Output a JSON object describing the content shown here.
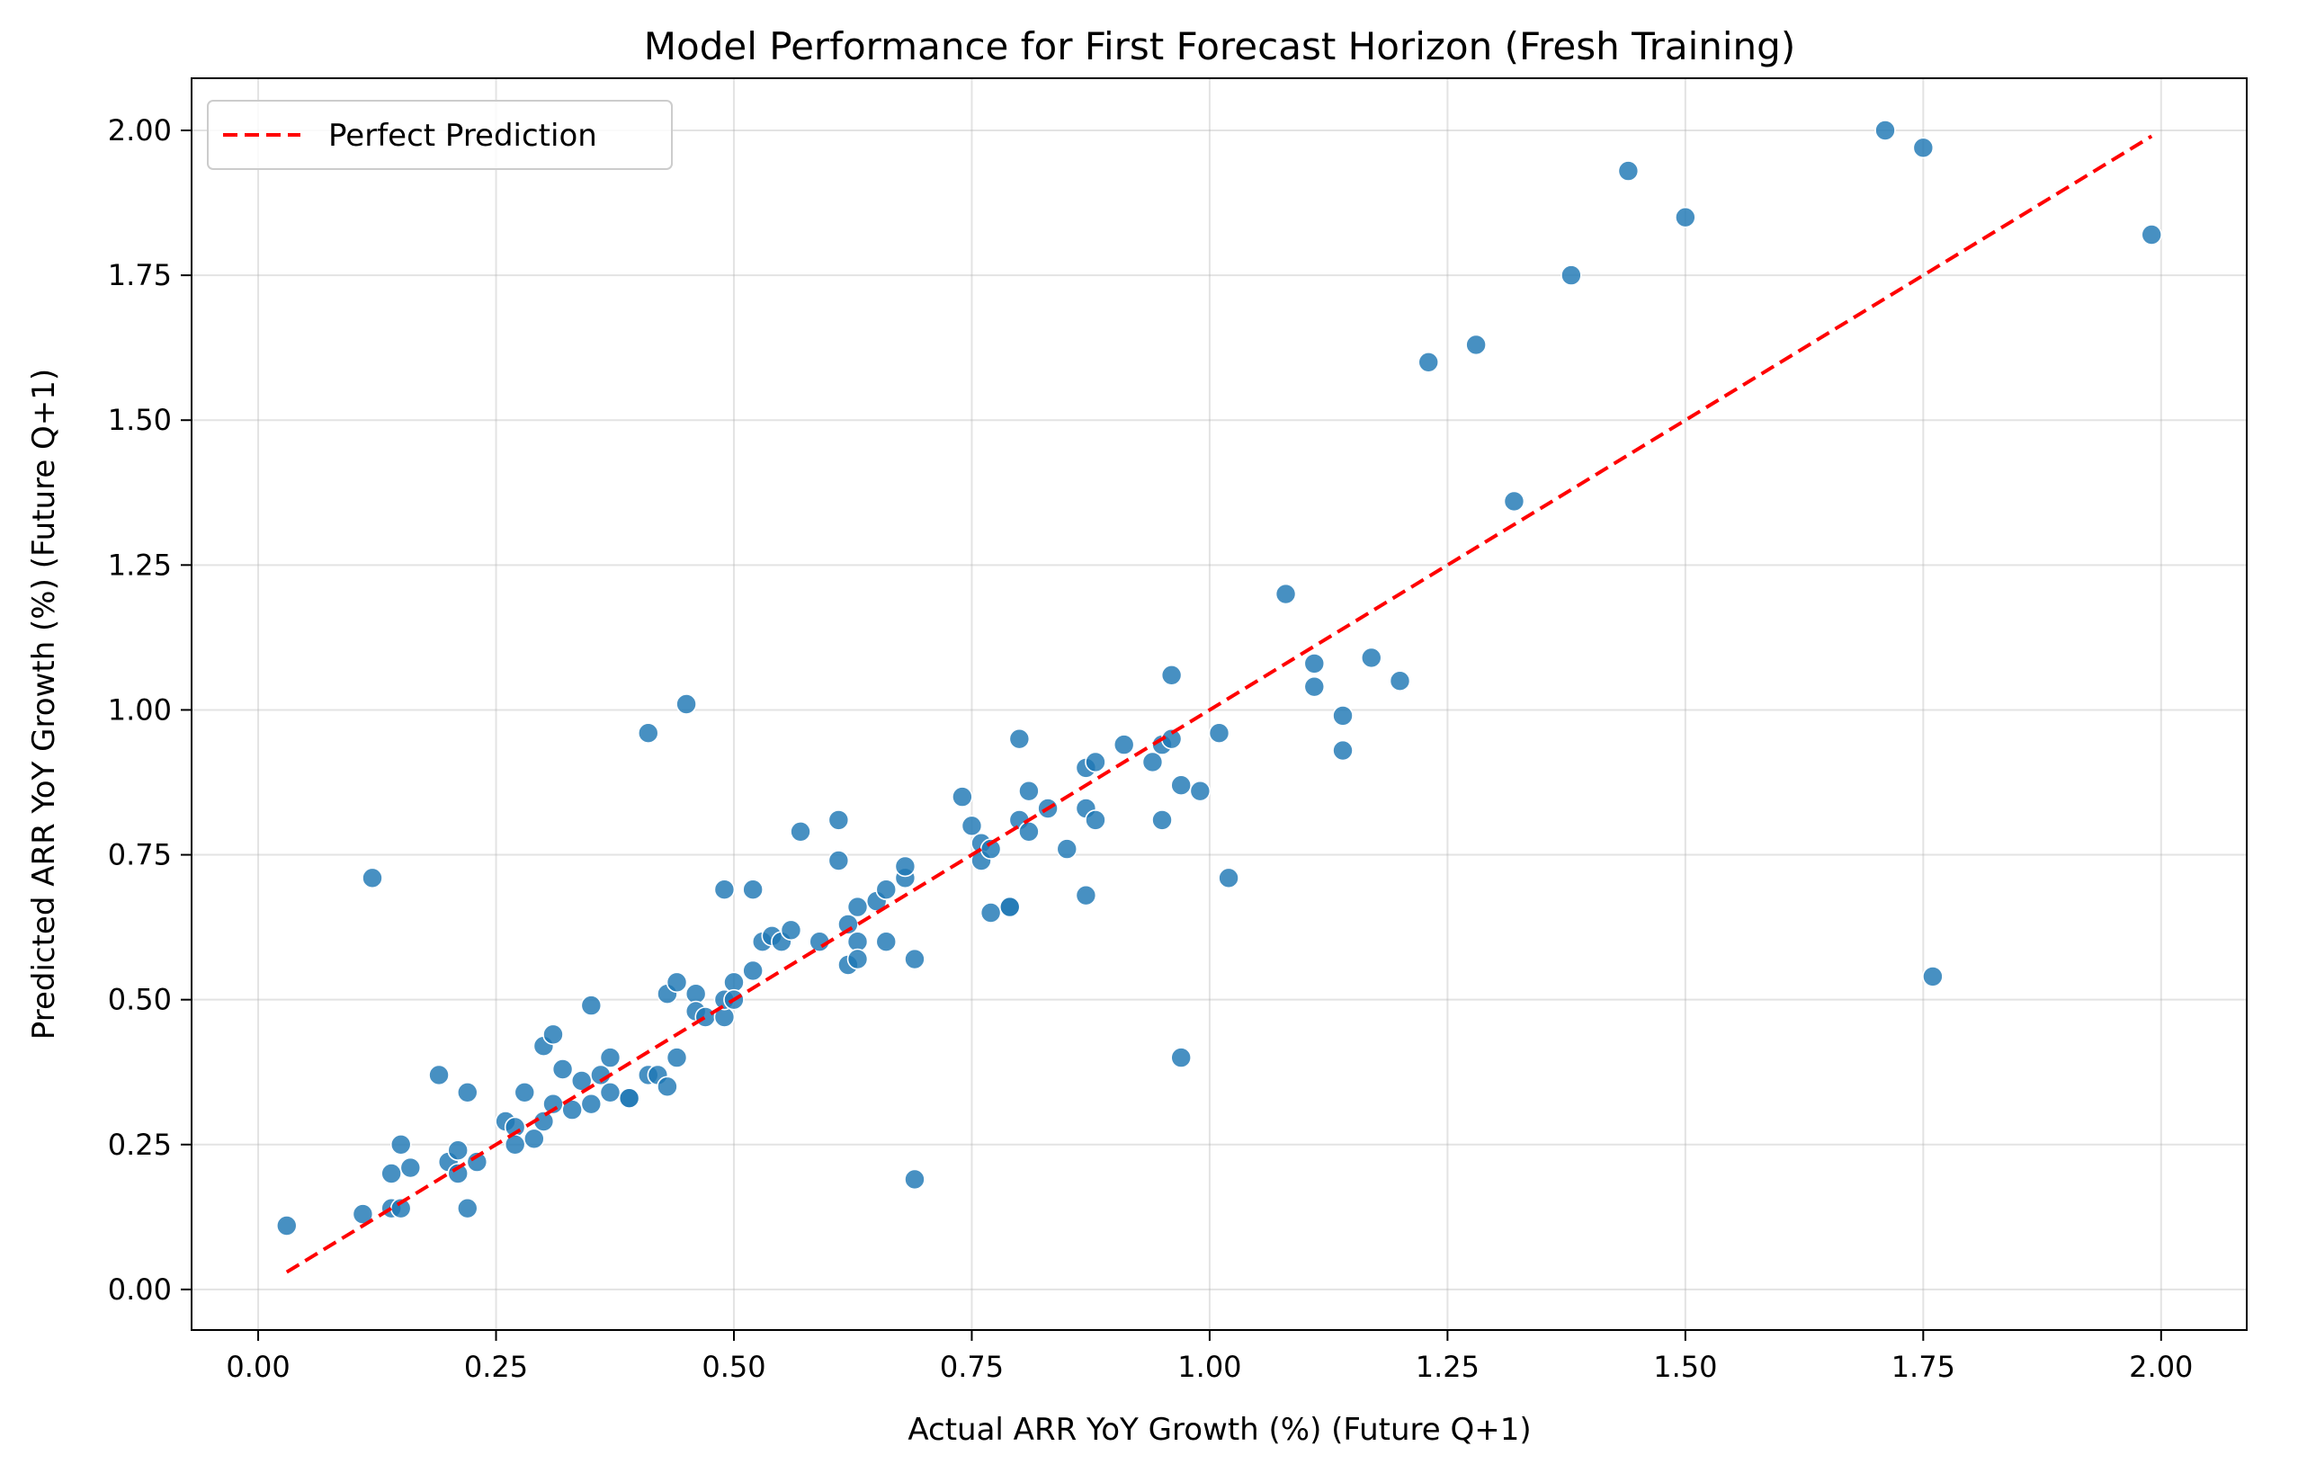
{
  "chart_data": {
    "type": "scatter",
    "title": "Model Performance for First Forecast Horizon (Fresh Training)",
    "xlabel": "Actual ARR YoY Growth (%) (Future Q+1)",
    "ylabel": "Predicted ARR YoY Growth (%) (Future Q+1)",
    "xlim": [
      -0.07,
      2.09
    ],
    "ylim": [
      -0.07,
      2.09
    ],
    "xticks": [
      "0.00",
      "0.25",
      "0.50",
      "0.75",
      "1.00",
      "1.25",
      "1.50",
      "1.75",
      "2.00"
    ],
    "yticks": [
      "0.00",
      "0.25",
      "0.50",
      "0.75",
      "1.00",
      "1.25",
      "1.50",
      "1.75",
      "2.00"
    ],
    "grid": true,
    "legend": {
      "position": "top-left",
      "entries": [
        "Perfect Prediction"
      ]
    },
    "reference_line": {
      "name": "Perfect Prediction",
      "style": "dashed",
      "color": "#ff0000",
      "x": [
        0.03,
        1.99
      ],
      "y": [
        0.03,
        1.99
      ]
    },
    "series": [
      {
        "color": "#1f77b4",
        "points": [
          [
            0.03,
            0.11
          ],
          [
            0.11,
            0.13
          ],
          [
            0.14,
            0.14
          ],
          [
            0.15,
            0.14
          ],
          [
            0.14,
            0.2
          ],
          [
            0.15,
            0.25
          ],
          [
            0.16,
            0.21
          ],
          [
            0.12,
            0.71
          ],
          [
            0.19,
            0.37
          ],
          [
            0.2,
            0.22
          ],
          [
            0.21,
            0.24
          ],
          [
            0.21,
            0.2
          ],
          [
            0.22,
            0.34
          ],
          [
            0.22,
            0.14
          ],
          [
            0.23,
            0.22
          ],
          [
            0.26,
            0.29
          ],
          [
            0.27,
            0.28
          ],
          [
            0.27,
            0.25
          ],
          [
            0.28,
            0.34
          ],
          [
            0.29,
            0.26
          ],
          [
            0.3,
            0.29
          ],
          [
            0.3,
            0.42
          ],
          [
            0.31,
            0.44
          ],
          [
            0.31,
            0.32
          ],
          [
            0.32,
            0.38
          ],
          [
            0.33,
            0.31
          ],
          [
            0.34,
            0.36
          ],
          [
            0.35,
            0.32
          ],
          [
            0.35,
            0.49
          ],
          [
            0.36,
            0.37
          ],
          [
            0.37,
            0.34
          ],
          [
            0.37,
            0.4
          ],
          [
            0.39,
            0.33
          ],
          [
            0.39,
            0.33
          ],
          [
            0.41,
            0.96
          ],
          [
            0.41,
            0.37
          ],
          [
            0.42,
            0.37
          ],
          [
            0.43,
            0.35
          ],
          [
            0.43,
            0.51
          ],
          [
            0.44,
            0.53
          ],
          [
            0.44,
            0.4
          ],
          [
            0.45,
            1.01
          ],
          [
            0.46,
            0.51
          ],
          [
            0.46,
            0.48
          ],
          [
            0.47,
            0.47
          ],
          [
            0.49,
            0.69
          ],
          [
            0.49,
            0.47
          ],
          [
            0.49,
            0.5
          ],
          [
            0.5,
            0.53
          ],
          [
            0.5,
            0.5
          ],
          [
            0.52,
            0.69
          ],
          [
            0.52,
            0.55
          ],
          [
            0.53,
            0.6
          ],
          [
            0.54,
            0.61
          ],
          [
            0.55,
            0.6
          ],
          [
            0.56,
            0.62
          ],
          [
            0.57,
            0.79
          ],
          [
            0.59,
            0.6
          ],
          [
            0.61,
            0.81
          ],
          [
            0.61,
            0.74
          ],
          [
            0.62,
            0.63
          ],
          [
            0.62,
            0.56
          ],
          [
            0.63,
            0.66
          ],
          [
            0.63,
            0.6
          ],
          [
            0.63,
            0.57
          ],
          [
            0.65,
            0.67
          ],
          [
            0.66,
            0.69
          ],
          [
            0.66,
            0.6
          ],
          [
            0.68,
            0.71
          ],
          [
            0.68,
            0.73
          ],
          [
            0.69,
            0.57
          ],
          [
            0.69,
            0.19
          ],
          [
            0.74,
            0.85
          ],
          [
            0.75,
            0.8
          ],
          [
            0.76,
            0.77
          ],
          [
            0.76,
            0.74
          ],
          [
            0.77,
            0.76
          ],
          [
            0.77,
            0.65
          ],
          [
            0.79,
            0.66
          ],
          [
            0.79,
            0.66
          ],
          [
            0.8,
            0.81
          ],
          [
            0.8,
            0.95
          ],
          [
            0.81,
            0.86
          ],
          [
            0.81,
            0.79
          ],
          [
            0.83,
            0.83
          ],
          [
            0.85,
            0.76
          ],
          [
            0.87,
            0.9
          ],
          [
            0.87,
            0.83
          ],
          [
            0.87,
            0.68
          ],
          [
            0.88,
            0.91
          ],
          [
            0.88,
            0.81
          ],
          [
            0.91,
            0.94
          ],
          [
            0.94,
            0.91
          ],
          [
            0.95,
            0.81
          ],
          [
            0.95,
            0.94
          ],
          [
            0.96,
            0.95
          ],
          [
            0.96,
            1.06
          ],
          [
            0.97,
            0.87
          ],
          [
            0.97,
            0.4
          ],
          [
            0.99,
            0.86
          ],
          [
            1.01,
            0.96
          ],
          [
            1.02,
            0.71
          ],
          [
            1.08,
            1.2
          ],
          [
            1.11,
            1.08
          ],
          [
            1.11,
            1.04
          ],
          [
            1.14,
            0.99
          ],
          [
            1.14,
            0.93
          ],
          [
            1.17,
            1.09
          ],
          [
            1.2,
            1.05
          ],
          [
            1.23,
            1.6
          ],
          [
            1.28,
            1.63
          ],
          [
            1.32,
            1.36
          ],
          [
            1.38,
            1.75
          ],
          [
            1.44,
            1.93
          ],
          [
            1.5,
            1.85
          ],
          [
            1.71,
            2.0
          ],
          [
            1.75,
            1.97
          ],
          [
            1.76,
            0.54
          ],
          [
            1.99,
            1.82
          ]
        ]
      }
    ]
  }
}
